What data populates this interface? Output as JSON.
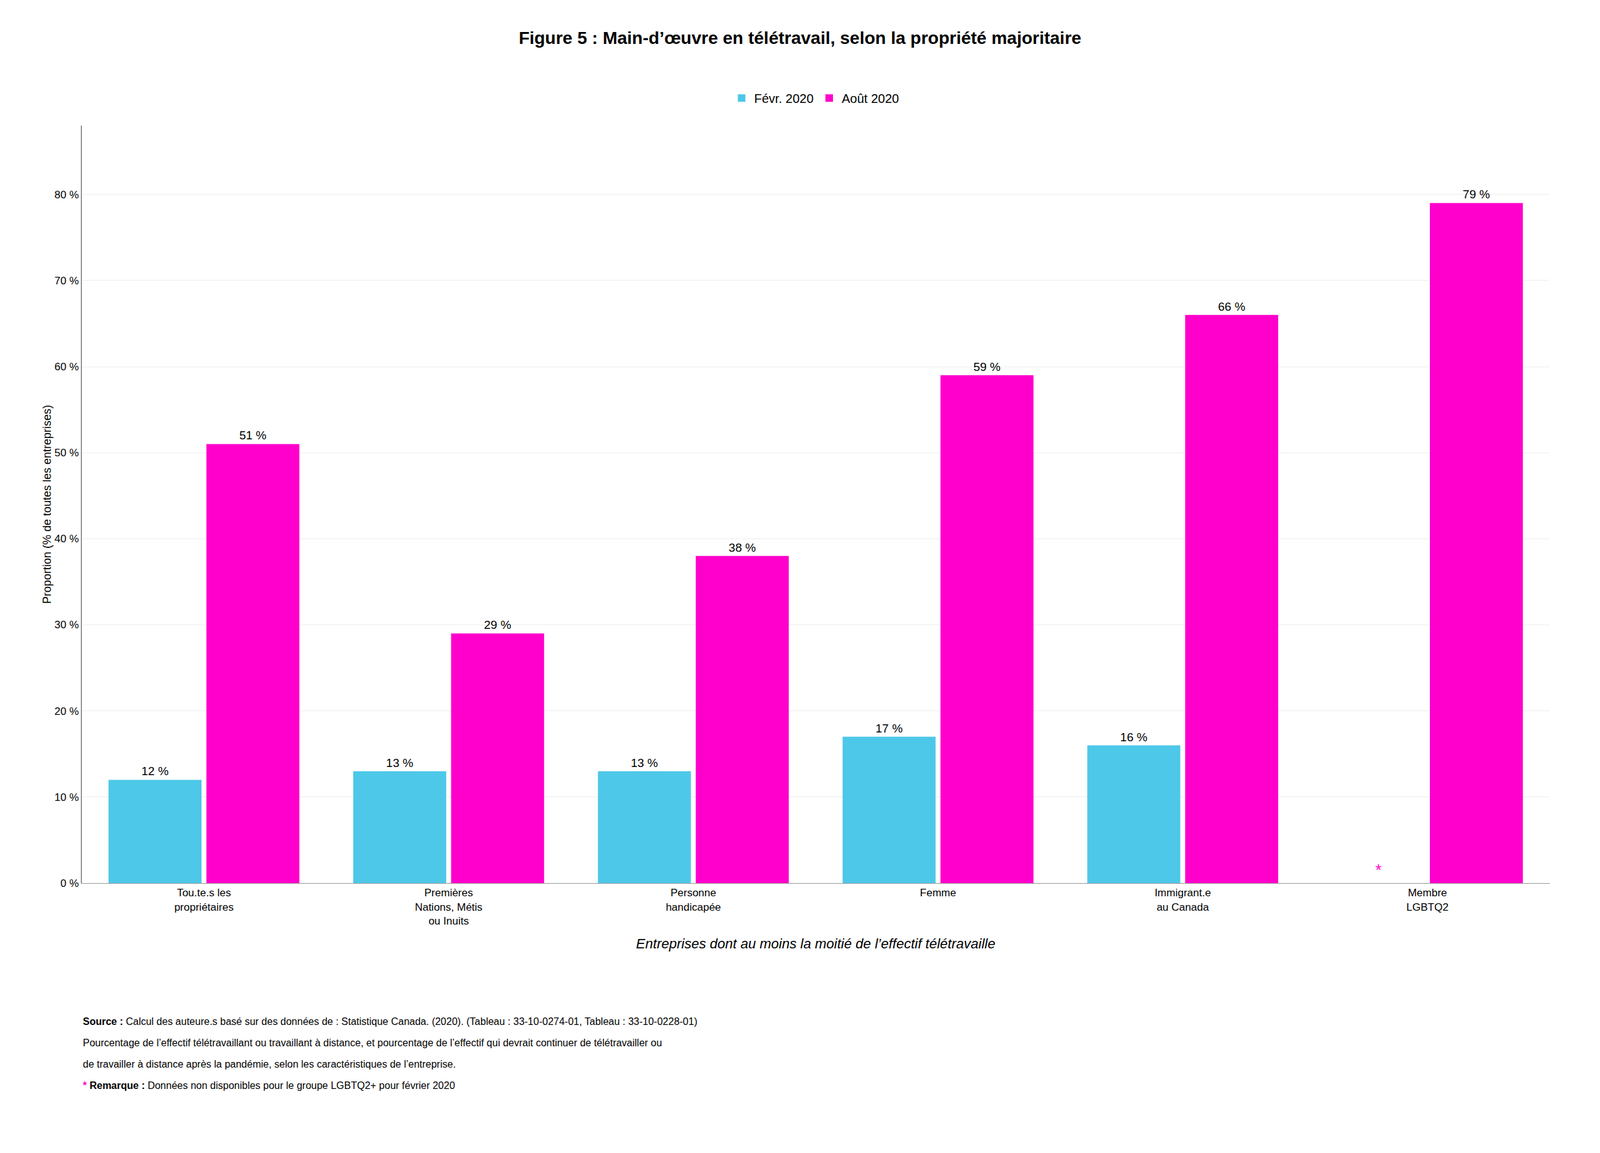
{
  "chart_data": {
    "type": "bar",
    "title": "Figure 5 : Main-d’œuvre en télétravail, selon la propriété majoritaire",
    "categories": [
      "Tou.te.s les\npropriétaires",
      "Premières\nNations, Métis\nou Inuits",
      "Personne\nhandicapée",
      "Femme",
      "Immigrant.e\nau Canada",
      "Membre\nLGBTQ2"
    ],
    "series": [
      {
        "name": "Févr. 2020",
        "color": "#4DC8E8",
        "values": [
          12,
          13,
          13,
          17,
          16,
          null
        ],
        "value_labels": [
          "12 %",
          "13 %",
          "13 %",
          "17 %",
          "16 %",
          null
        ]
      },
      {
        "name": "Août 2020",
        "color": "#FF00CC",
        "values": [
          51,
          29,
          38,
          59,
          66,
          79
        ],
        "value_labels": [
          "51 %",
          "29 %",
          "38 %",
          "59 %",
          "66 %",
          "79 %"
        ]
      }
    ],
    "data_labels": true,
    "ylabel": "Proportion (% de toutes les entreprises)",
    "xlabel": "Entreprises dont au moins la moitié de l’effectif télétravaille",
    "ylim": [
      0,
      88
    ],
    "yticks": [
      {
        "value": 0,
        "label": "0 %"
      },
      {
        "value": 10,
        "label": "10 %"
      },
      {
        "value": 20,
        "label": "20 %"
      },
      {
        "value": 30,
        "label": "30 %"
      },
      {
        "value": 40,
        "label": "40 %"
      },
      {
        "value": 50,
        "label": "50 %"
      },
      {
        "value": 60,
        "label": "60 %"
      },
      {
        "value": 70,
        "label": "70 %"
      },
      {
        "value": 80,
        "label": "80 %"
      }
    ],
    "grid": true,
    "legend": "top",
    "annotations": [
      {
        "text": "*",
        "category": "Membre\nLGBTQ2",
        "series": "Févr. 2020",
        "color": "#FF00CC"
      }
    ],
    "notes": [
      {
        "bold": "Source :",
        "text": " Calcul des auteure.s basé sur des données de : Statistique Canada. (2020). (Tableau : 33-10-0274-01, Tableau : 33-10-0228-01)"
      },
      {
        "text": "Pourcentage de l’effectif télétravaillant ou travaillant à distance, et pourcentage de l’effectif qui devrait continuer de télétravailler ou"
      },
      {
        "text": "de travailler à distance après la pandémie, selon les caractéristiques de l’entreprise."
      },
      {
        "mark": "*",
        "color": "#FF00CC",
        "bold": "Remarque :",
        "text": " Données non disponibles pour le groupe LGBTQ2+ pour février 2020"
      }
    ]
  }
}
